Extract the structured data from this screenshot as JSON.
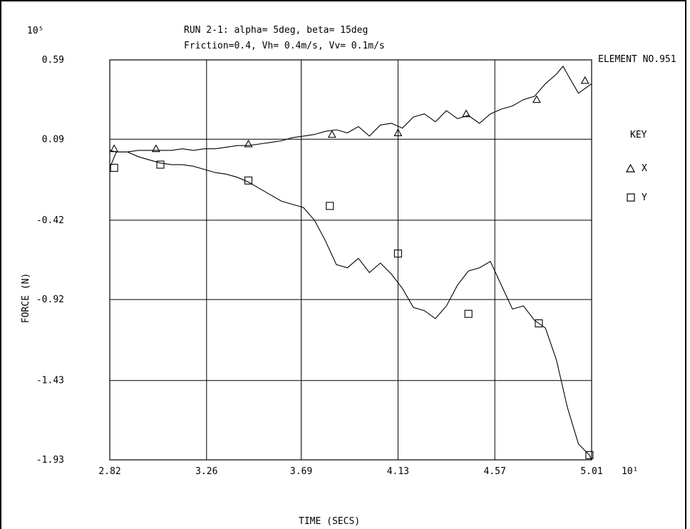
{
  "chart_data": {
    "type": "line",
    "title": "RUN 2-1: alpha= 5deg, beta= 15deg",
    "subtitle": "Friction=0.4, Vh= 0.4m/s, Vv= 0.1m/s",
    "element_label": "ELEMENT NO.951",
    "xlabel": "TIME (SECS)",
    "ylabel": "FORCE (N)",
    "x_multiplier": "10¹",
    "y_multiplier": "10⁵",
    "xlim": [
      2.82,
      5.01
    ],
    "ylim": [
      -1.93,
      0.59
    ],
    "x_ticks": [
      "2.82",
      "3.26",
      "3.69",
      "4.13",
      "4.57",
      "5.01"
    ],
    "y_ticks": [
      "0.59",
      "0.09",
      "-0.42",
      "-0.92",
      "-1.43",
      "-1.93"
    ],
    "x_tick_values": [
      2.82,
      3.26,
      3.69,
      4.13,
      4.57,
      5.01
    ],
    "y_tick_values": [
      0.59,
      0.09,
      -0.42,
      -0.92,
      -1.43,
      -1.93
    ],
    "grid": true,
    "legend_title": "KEY",
    "legend_position": "right",
    "series": [
      {
        "name": "X",
        "marker": "triangle",
        "x": [
          2.82,
          2.85,
          2.9,
          2.95,
          3.0,
          3.05,
          3.1,
          3.15,
          3.2,
          3.25,
          3.3,
          3.35,
          3.4,
          3.45,
          3.5,
          3.55,
          3.6,
          3.65,
          3.7,
          3.75,
          3.8,
          3.85,
          3.9,
          3.95,
          4.0,
          4.05,
          4.1,
          4.15,
          4.2,
          4.25,
          4.3,
          4.35,
          4.4,
          4.45,
          4.5,
          4.55,
          4.6,
          4.65,
          4.7,
          4.75,
          4.8,
          4.85,
          4.88,
          4.9,
          4.95,
          5.01
        ],
        "y": [
          0.02,
          0.01,
          0.01,
          0.02,
          0.02,
          0.02,
          0.02,
          0.03,
          0.02,
          0.03,
          0.03,
          0.04,
          0.05,
          0.05,
          0.06,
          0.07,
          0.08,
          0.1,
          0.11,
          0.12,
          0.14,
          0.15,
          0.13,
          0.17,
          0.11,
          0.18,
          0.19,
          0.16,
          0.23,
          0.25,
          0.2,
          0.27,
          0.22,
          0.24,
          0.19,
          0.25,
          0.28,
          0.3,
          0.34,
          0.36,
          0.44,
          0.5,
          0.55,
          0.5,
          0.38,
          0.44
        ],
        "marker_x": [
          2.84,
          3.03,
          3.45,
          3.83,
          4.13,
          4.44,
          4.76,
          4.98
        ],
        "marker_y": [
          0.03,
          0.03,
          0.06,
          0.12,
          0.13,
          0.25,
          0.34,
          0.46
        ]
      },
      {
        "name": "Y",
        "marker": "square",
        "x": [
          2.82,
          2.85,
          2.9,
          2.95,
          3.0,
          3.05,
          3.1,
          3.15,
          3.2,
          3.25,
          3.3,
          3.35,
          3.4,
          3.45,
          3.5,
          3.55,
          3.6,
          3.65,
          3.7,
          3.75,
          3.8,
          3.85,
          3.9,
          3.95,
          4.0,
          4.05,
          4.1,
          4.15,
          4.2,
          4.25,
          4.3,
          4.35,
          4.4,
          4.45,
          4.5,
          4.55,
          4.6,
          4.65,
          4.7,
          4.75,
          4.8,
          4.85,
          4.9,
          4.95,
          5.0,
          5.01
        ],
        "y": [
          -0.09,
          0.01,
          0.01,
          -0.02,
          -0.04,
          -0.06,
          -0.07,
          -0.07,
          -0.08,
          -0.1,
          -0.12,
          -0.13,
          -0.15,
          -0.18,
          -0.22,
          -0.26,
          -0.3,
          -0.32,
          -0.34,
          -0.42,
          -0.55,
          -0.7,
          -0.72,
          -0.66,
          -0.75,
          -0.69,
          -0.76,
          -0.85,
          -0.97,
          -0.99,
          -1.04,
          -0.96,
          -0.83,
          -0.74,
          -0.72,
          -0.68,
          -0.83,
          -0.98,
          -0.96,
          -1.05,
          -1.1,
          -1.3,
          -1.6,
          -1.83,
          -1.9,
          -1.93
        ],
        "marker_x": [
          2.84,
          3.05,
          3.45,
          3.82,
          4.13,
          4.45,
          4.77,
          5.0
        ],
        "marker_y": [
          -0.09,
          -0.07,
          -0.17,
          -0.33,
          -0.63,
          -1.01,
          -1.07,
          -1.9
        ]
      }
    ]
  }
}
